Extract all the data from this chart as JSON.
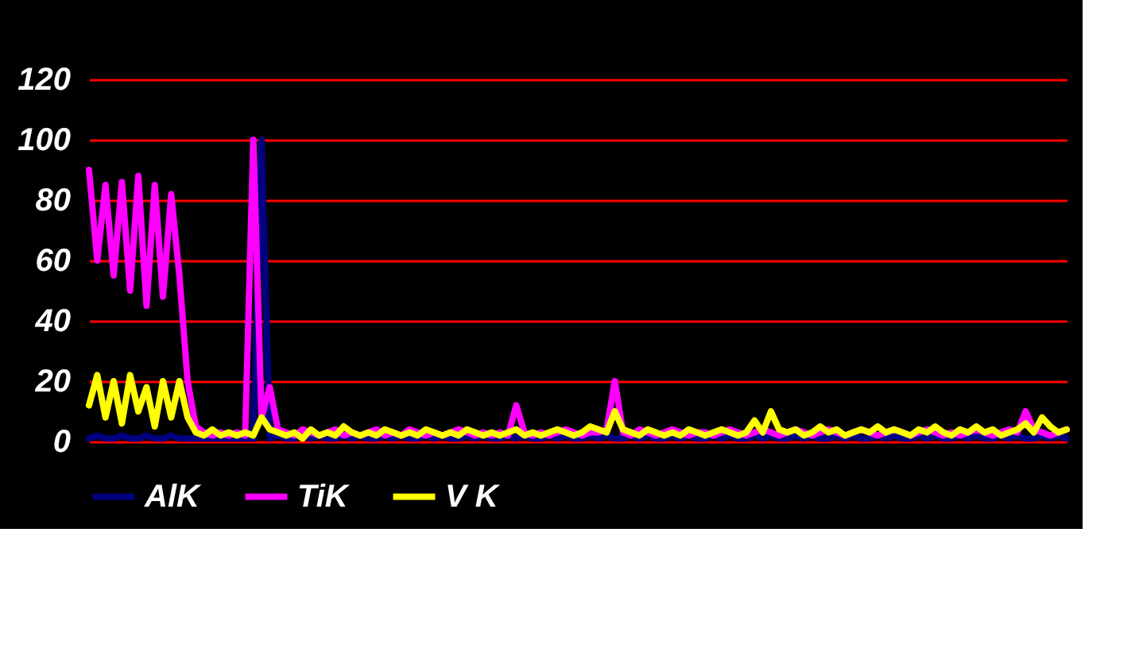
{
  "chart_data": {
    "type": "line",
    "categories": [
      null,
      null,
      null,
      null,
      null,
      null,
      null,
      null,
      null,
      null,
      null,
      null,
      null,
      null,
      null,
      null,
      null,
      null,
      null,
      null,
      null,
      null,
      null,
      null,
      null,
      null,
      null,
      null,
      null,
      null,
      null,
      null,
      null,
      null,
      null,
      null,
      null,
      null,
      null,
      null,
      null,
      null,
      null,
      null,
      null,
      null,
      null,
      null,
      null,
      null,
      null,
      null,
      null,
      null,
      null,
      null,
      null,
      null,
      null,
      null,
      null,
      null,
      null,
      null,
      null,
      null,
      null,
      null,
      null,
      null,
      null,
      null,
      null,
      null,
      null,
      null,
      null,
      null,
      null,
      null,
      null,
      null,
      null,
      null,
      null,
      null,
      null,
      null,
      null,
      null,
      null,
      null,
      null,
      null,
      null,
      null,
      null,
      null,
      null,
      null,
      null,
      null,
      null,
      null,
      null,
      null,
      null,
      null,
      null,
      null,
      null,
      null,
      null,
      null,
      null,
      null,
      null,
      null,
      null,
      null
    ],
    "series": [
      {
        "name": "AlK",
        "color": "#000080",
        "values": [
          1,
          2,
          1,
          1,
          2,
          1,
          1,
          2,
          1,
          1,
          2,
          1,
          1,
          1,
          1,
          1,
          1,
          1,
          1,
          1,
          1,
          100,
          1,
          2,
          1,
          1,
          2,
          1,
          2,
          1,
          1,
          2,
          1,
          2,
          1,
          1,
          2,
          1,
          2,
          1,
          1,
          2,
          1,
          2,
          1,
          1,
          2,
          1,
          2,
          1,
          1,
          2,
          1,
          2,
          1,
          1,
          2,
          1,
          2,
          1,
          1,
          2,
          1,
          2,
          1,
          1,
          2,
          1,
          2,
          1,
          1,
          2,
          1,
          2,
          1,
          1,
          2,
          1,
          2,
          1,
          1,
          2,
          1,
          2,
          1,
          1,
          2,
          1,
          2,
          1,
          1,
          2,
          1,
          2,
          1,
          1,
          2,
          1,
          2,
          1,
          1,
          2,
          1,
          2,
          1,
          1,
          2,
          1,
          2,
          1,
          1,
          2,
          1,
          2,
          1,
          1,
          2,
          1,
          2,
          1
        ]
      },
      {
        "name": "TiK",
        "color": "#ff00ff",
        "values": [
          90,
          60,
          85,
          55,
          86,
          50,
          88,
          45,
          85,
          48,
          82,
          55,
          20,
          5,
          3,
          2,
          3,
          2,
          3,
          2,
          100,
          8,
          18,
          4,
          3,
          2,
          4,
          3,
          2,
          3,
          4,
          2,
          3,
          2,
          3,
          4,
          2,
          3,
          2,
          4,
          3,
          2,
          3,
          2,
          3,
          4,
          3,
          2,
          3,
          2,
          3,
          2,
          12,
          3,
          2,
          3,
          2,
          3,
          4,
          3,
          2,
          3,
          3,
          4,
          20,
          3,
          2,
          4,
          3,
          2,
          3,
          4,
          3,
          2,
          3,
          3,
          2,
          3,
          4,
          3,
          2,
          3,
          4,
          3,
          2,
          3,
          4,
          3,
          2,
          3,
          4,
          3,
          2,
          3,
          4,
          3,
          2,
          3,
          4,
          3,
          2,
          3,
          4,
          3,
          2,
          3,
          2,
          3,
          4,
          3,
          2,
          3,
          4,
          3,
          10,
          4,
          3,
          2,
          3,
          4
        ]
      },
      {
        "name": "V K",
        "color": "#ffff00",
        "values": [
          12,
          22,
          8,
          20,
          6,
          22,
          10,
          18,
          5,
          20,
          8,
          20,
          8,
          3,
          2,
          4,
          2,
          3,
          2,
          3,
          2,
          8,
          4,
          3,
          2,
          3,
          1,
          4,
          2,
          3,
          2,
          5,
          3,
          2,
          3,
          2,
          4,
          3,
          2,
          3,
          2,
          4,
          3,
          2,
          3,
          2,
          4,
          3,
          2,
          3,
          2,
          3,
          4,
          2,
          3,
          2,
          3,
          4,
          3,
          2,
          3,
          5,
          4,
          3,
          10,
          4,
          3,
          2,
          4,
          3,
          2,
          3,
          2,
          4,
          3,
          2,
          3,
          4,
          3,
          2,
          3,
          7,
          3,
          10,
          4,
          3,
          4,
          2,
          3,
          5,
          3,
          4,
          2,
          3,
          4,
          3,
          5,
          3,
          4,
          3,
          2,
          4,
          3,
          5,
          3,
          2,
          4,
          3,
          5,
          3,
          4,
          2,
          3,
          4,
          6,
          3,
          8,
          5,
          3,
          4
        ]
      }
    ],
    "ylim": [
      0,
      120
    ],
    "yticks": [
      0,
      20,
      40,
      60,
      80,
      100,
      120
    ],
    "grid": "y",
    "legend": "bottom"
  }
}
